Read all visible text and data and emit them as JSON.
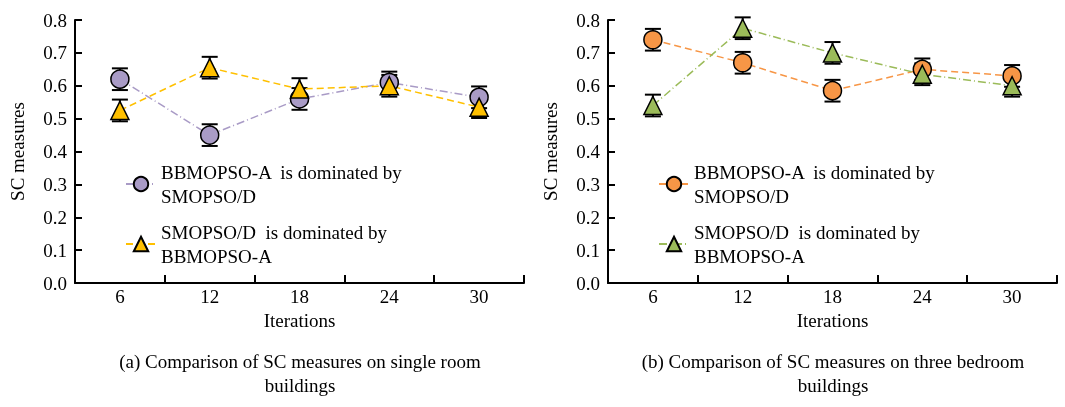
{
  "chart_data": [
    {
      "type": "line",
      "xlabel": "Iterations",
      "ylabel": "SC measures",
      "categories": [
        "6",
        "12",
        "18",
        "24",
        "30"
      ],
      "ylim": [
        0,
        0.8
      ],
      "yticks": [
        {
          "value": 0,
          "label": "0.0"
        },
        0.1,
        0.2,
        0.3,
        0.4,
        0.5,
        0.6,
        0.7,
        0.8
      ],
      "grid": false,
      "legend": "bottom left",
      "series": [
        {
          "name": "BBMOPSO-A  is dominated by SMOPSO/D",
          "color": "#a99bc6",
          "marker": "circle",
          "line_style": "dotted",
          "values": [
            0.62,
            0.45,
            0.56,
            0.61,
            0.565
          ],
          "errors": [
            0.033,
            0.033,
            0.033,
            0.033,
            0.033
          ]
        },
        {
          "name": "SMOPSO/D  is dominated by BBMOPSO-A",
          "color": "#ffc000",
          "marker": "triangle",
          "line_style": "dashed",
          "values": [
            0.525,
            0.655,
            0.59,
            0.6,
            0.535
          ],
          "errors": [
            0.033,
            0.033,
            0.033,
            0.033,
            0.033
          ]
        }
      ],
      "annotations": [
        "(a) Comparison of SC measures on single room buildings"
      ]
    },
    {
      "type": "line",
      "xlabel": "Iterations",
      "ylabel": "SC measures",
      "categories": [
        "6",
        "12",
        "18",
        "24",
        "30"
      ],
      "ylim": [
        0,
        0.8
      ],
      "yticks": [
        {
          "value": 0,
          "label": "0.0"
        },
        0.1,
        0.2,
        0.3,
        0.4,
        0.5,
        0.6,
        0.7,
        0.8
      ],
      "grid": false,
      "legend": "bottom left",
      "series": [
        {
          "name": "BBMOPSO-A  is dominated by SMOPSO/D",
          "color": "#f79646",
          "marker": "circle",
          "line_style": "dashed",
          "values": [
            0.74,
            0.67,
            0.585,
            0.65,
            0.63
          ],
          "errors": [
            0.033,
            0.033,
            0.033,
            0.033,
            0.033
          ]
        },
        {
          "name": "SMOPSO/D  is dominated by BBMOPSO-A",
          "color": "#9bbb59",
          "marker": "triangle",
          "line_style": "dotted",
          "values": [
            0.54,
            0.775,
            0.7,
            0.635,
            0.6
          ],
          "errors": [
            0.033,
            0.033,
            0.033,
            0.033,
            0.033
          ]
        }
      ],
      "annotations": [
        "(b) Comparison of SC measures on three bedroom buildings"
      ]
    }
  ]
}
